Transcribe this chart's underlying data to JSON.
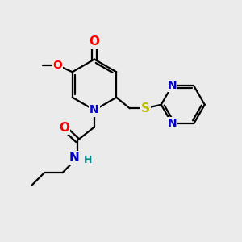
{
  "bg_color": "#ebebeb",
  "bond_color": "#000000",
  "bond_width": 1.6,
  "atom_colors": {
    "O": "#ff0000",
    "N": "#0000cc",
    "S": "#bbbb00",
    "H": "#008888",
    "C": "#000000"
  },
  "font_size": 10,
  "fig_width": 3.0,
  "fig_height": 3.0
}
